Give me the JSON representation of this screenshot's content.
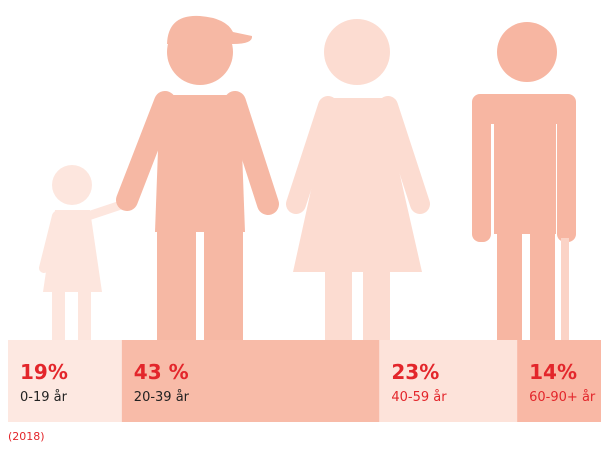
{
  "chart_data": {
    "type": "bar",
    "stacked": true,
    "categories": [
      "0-19 år",
      "20-39 år",
      "40-59 år",
      "60-90+ år"
    ],
    "values": [
      19,
      43,
      23,
      14
    ],
    "value_labels": [
      "19%",
      "43 %",
      "23%",
      "14%"
    ],
    "colors": [
      "#fde8e1",
      "#f8bba8",
      "#fde3da",
      "#f9b8a5"
    ],
    "value_label_color": "#e3262b",
    "label_colors": [
      "#222222",
      "#222222",
      "#e3262b",
      "#e3262b"
    ],
    "note": "(2018)"
  }
}
